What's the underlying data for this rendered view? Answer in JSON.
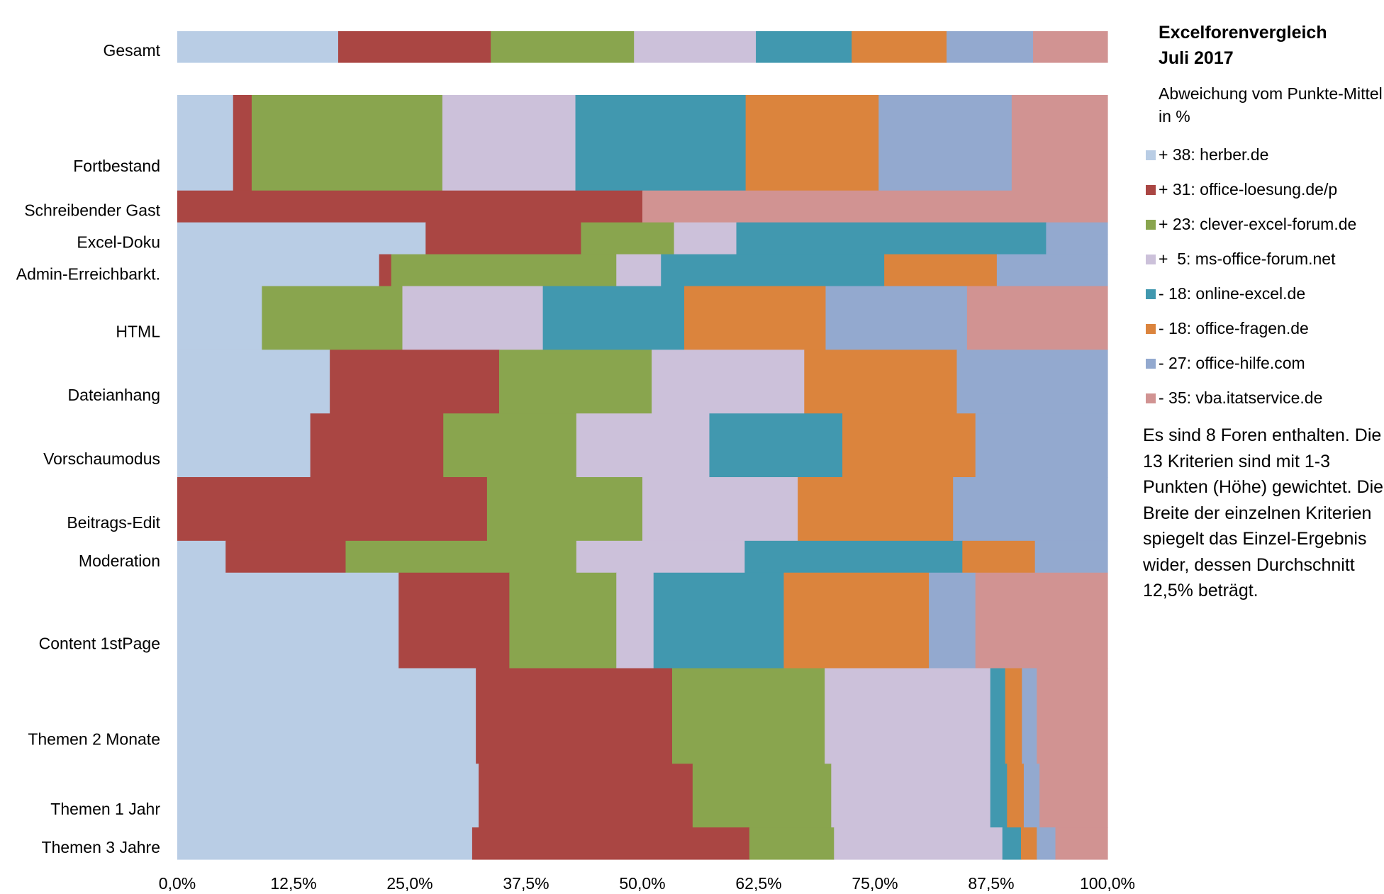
{
  "chart_data": {
    "type": "bar",
    "subtype": "stacked-horizontal-100%-variable-height",
    "title": "Excelforenvergleich",
    "subtitle": "Juli 2017",
    "legend_title": "Abweichung vom Punkte-Mittel in %",
    "legend_placement": "right",
    "xlim": [
      0,
      100
    ],
    "x_ticks": [
      "0,0%",
      "12,5%",
      "25,0%",
      "37,5%",
      "50,0%",
      "62,5%",
      "75,0%",
      "87,5%",
      "100,0%"
    ],
    "grid": false,
    "series": [
      {
        "name": "herber.de",
        "legend": "+ 38: herber.de",
        "color": "#b9cde5"
      },
      {
        "name": "office-loesung.de/p",
        "legend": "+ 31: office-loesung.de/p",
        "color": "#aa4643"
      },
      {
        "name": "clever-excel-forum.de",
        "legend": "+ 23: clever-excel-forum.de",
        "color": "#89a54e"
      },
      {
        "name": "ms-office-forum.net",
        "legend": "+  5: ms-office-forum.net",
        "color": "#ccc1da"
      },
      {
        "name": "online-excel.de",
        "legend": "- 18: online-excel.de",
        "color": "#4198af"
      },
      {
        "name": "office-fragen.de",
        "legend": "- 18: office-fragen.de",
        "color": "#db843d"
      },
      {
        "name": "office-hilfe.com",
        "legend": "- 27: office-hilfe.com",
        "color": "#93a9cf"
      },
      {
        "name": "vba.itatservice.de",
        "legend": "- 35: vba.itatservice.de",
        "color": "#d19392"
      }
    ],
    "rows": [
      {
        "label": "Gesamt",
        "weight": 1,
        "values": [
          17.3,
          16.4,
          15.4,
          13.1,
          10.3,
          10.2,
          9.3,
          8.0
        ]
      },
      {
        "label": "Fortbestand",
        "weight": 3,
        "values": [
          6.0,
          2.0,
          20.5,
          14.3,
          18.3,
          14.3,
          14.3,
          10.3
        ]
      },
      {
        "label": "Schreibender Gast",
        "weight": 1,
        "values": [
          0,
          50.0,
          0,
          0,
          0,
          0,
          0,
          50.0
        ]
      },
      {
        "label": "Excel-Doku",
        "weight": 1,
        "values": [
          26.7,
          16.7,
          10.0,
          6.7,
          33.3,
          0,
          6.6,
          0
        ]
      },
      {
        "label": "Admin-Erreichbarkt.",
        "weight": 1,
        "values": [
          21.7,
          1.3,
          24.2,
          4.8,
          24.0,
          12.1,
          11.9,
          0
        ]
      },
      {
        "label": "HTML",
        "weight": 2,
        "values": [
          9.1,
          0,
          15.1,
          15.1,
          15.2,
          15.2,
          15.2,
          15.1
        ]
      },
      {
        "label": "Dateianhang",
        "weight": 2,
        "values": [
          16.4,
          18.2,
          16.4,
          16.4,
          0,
          16.4,
          16.2,
          0
        ]
      },
      {
        "label": "Vorschaumodus",
        "weight": 2,
        "values": [
          14.3,
          14.3,
          14.3,
          14.3,
          14.3,
          14.3,
          14.2,
          0
        ]
      },
      {
        "label": "Beitrags-Edit",
        "weight": 2,
        "values": [
          0,
          33.3,
          16.7,
          16.7,
          0,
          16.7,
          16.6,
          0
        ]
      },
      {
        "label": "Moderation",
        "weight": 1,
        "values": [
          5.2,
          12.9,
          24.8,
          18.1,
          23.4,
          7.8,
          7.8,
          0
        ]
      },
      {
        "label": "Content 1stPage",
        "weight": 3,
        "values": [
          23.8,
          11.9,
          11.5,
          4.0,
          14.0,
          15.6,
          5.0,
          14.2
        ]
      },
      {
        "label": "Themen 2 Monate",
        "weight": 3,
        "values": [
          32.1,
          21.1,
          16.4,
          17.8,
          1.6,
          1.8,
          1.6,
          7.6
        ]
      },
      {
        "label": "Themen 1 Jahr",
        "weight": 2,
        "values": [
          32.4,
          23.0,
          14.9,
          17.1,
          1.8,
          1.8,
          1.7,
          7.3
        ]
      },
      {
        "label": "Themen 3 Jahre",
        "weight": 1,
        "values": [
          31.7,
          29.8,
          9.1,
          18.1,
          2.0,
          1.7,
          2.0,
          5.6
        ]
      }
    ],
    "note": "Es sind 8 Foren enthalten. Die 13 Kriterien sind mit 1-3 Punkten (Höhe) gewichtet. Die Breite der einzelnen Kriterien spiegelt das Einzel-Ergebnis wider, dessen Durchschnitt 12,5% beträgt."
  }
}
